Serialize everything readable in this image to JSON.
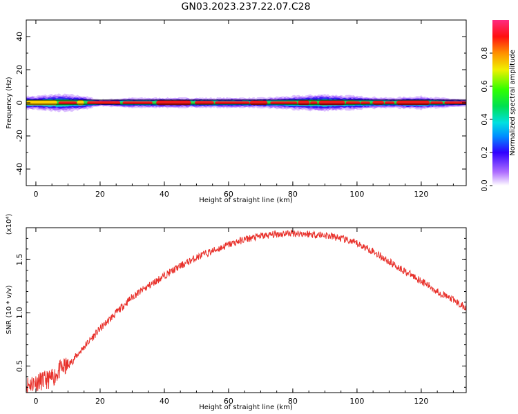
{
  "title": "GN03.2023.237.22.07.C28",
  "chart_data": [
    {
      "type": "heatmap",
      "xlabel": "Height of straight line (km)",
      "ylabel": "Frequency (Hz)",
      "xlim": [
        -3,
        134
      ],
      "ylim": [
        -50,
        50
      ],
      "xticks": [
        0,
        20,
        40,
        60,
        80,
        100,
        120
      ],
      "yticks": [
        40,
        20,
        0,
        -20,
        -40
      ],
      "reference_lines_hz": [
        2,
        -2
      ],
      "band_halfwidth_hz": [
        [
          -3,
          4
        ],
        [
          0,
          4
        ],
        [
          5,
          5
        ],
        [
          10,
          5
        ],
        [
          15,
          4
        ],
        [
          20,
          2
        ],
        [
          30,
          3
        ],
        [
          40,
          3
        ],
        [
          50,
          3
        ],
        [
          60,
          3
        ],
        [
          70,
          3
        ],
        [
          80,
          4
        ],
        [
          90,
          5
        ],
        [
          100,
          4
        ],
        [
          110,
          3
        ],
        [
          120,
          4
        ],
        [
          126,
          3
        ],
        [
          134,
          2
        ]
      ],
      "colorbar": {
        "label": "Normalized spectral amplitude",
        "ticks": [
          0.0,
          0.2,
          0.4,
          0.6,
          0.8
        ],
        "range": [
          0,
          1
        ]
      }
    },
    {
      "type": "line",
      "xlabel": "Height of straight line (km)",
      "ylabel": "SNR (10 * v/v)",
      "multiplier": "(x10⁴)",
      "xlim": [
        -3,
        134
      ],
      "ylim": [
        2500,
        18000
      ],
      "xticks": [
        0,
        20,
        40,
        60,
        80,
        100,
        120
      ],
      "yticks": [
        5000,
        10000,
        15000
      ],
      "ytick_labels": [
        "0.5",
        "1.0",
        "1.5"
      ],
      "series": [
        {
          "color": "#e8302a",
          "x": [
            -3,
            0,
            2,
            5,
            8,
            10,
            15,
            20,
            25,
            30,
            35,
            40,
            45,
            50,
            55,
            60,
            65,
            70,
            75,
            80,
            85,
            90,
            95,
            100,
            105,
            110,
            115,
            120,
            125,
            130,
            134
          ],
          "y": [
            3200,
            3500,
            3600,
            3800,
            4800,
            5000,
            6800,
            8500,
            10000,
            11500,
            12500,
            13500,
            14400,
            15200,
            15800,
            16400,
            16900,
            17200,
            17400,
            17500,
            17400,
            17300,
            17000,
            16500,
            15800,
            14800,
            13900,
            13000,
            12000,
            11200,
            10400
          ]
        }
      ]
    }
  ]
}
